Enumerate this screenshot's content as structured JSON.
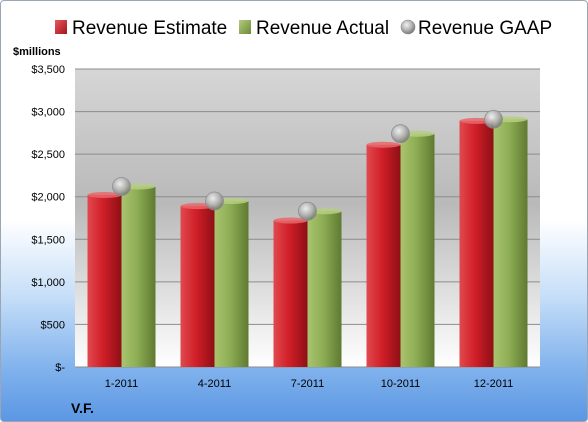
{
  "chart_data": {
    "type": "bar",
    "title": "",
    "ylabel": "$millions",
    "xlabel": "",
    "company": "V.F.",
    "categories": [
      "1-2011",
      "4-2011",
      "7-2011",
      "10-2011",
      "12-2011"
    ],
    "series": [
      {
        "name": "Revenue Estimate",
        "kind": "bar",
        "color": "#d9232d",
        "values": [
          2020,
          1890,
          1720,
          2610,
          2890
        ]
      },
      {
        "name": "Revenue Actual",
        "kind": "bar",
        "color": "#93b35a",
        "values": [
          2120,
          1950,
          1830,
          2740,
          2910
        ]
      },
      {
        "name": "Revenue GAAP",
        "kind": "marker",
        "color": "#b8b8b8",
        "values": [
          2120,
          1950,
          1830,
          2740,
          2910
        ]
      }
    ],
    "ylim": [
      0,
      3500
    ],
    "yticks": [
      0,
      500,
      1000,
      1500,
      2000,
      2500,
      3000,
      3500
    ],
    "ytick_labels": [
      "$-",
      "$500",
      "$1,000",
      "$1,500",
      "$2,000",
      "$2,500",
      "$3,000",
      "$3,500"
    ],
    "grid": true,
    "legend_position": "top"
  }
}
